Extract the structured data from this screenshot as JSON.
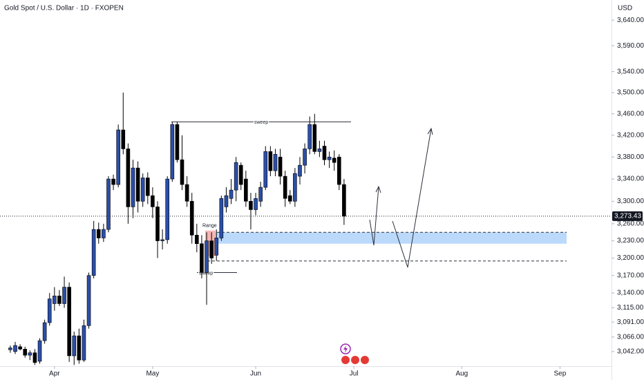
{
  "chart_data": {
    "type": "candlestick",
    "title": "Gold Spot / U.S. Dollar · 1D · FXOPEN",
    "currency": "USD",
    "log_scale": true,
    "grid": false,
    "up_color": "#2b4ea8",
    "down_color": "#000000",
    "ylim": [
      3018,
      3680
    ],
    "xlim": [
      -2.1,
      122.5
    ],
    "yticks": [
      {
        "value": 3640,
        "label": "3,640.00"
      },
      {
        "value": 3590,
        "label": "3,590.00"
      },
      {
        "value": 3540,
        "label": "3,540.00"
      },
      {
        "value": 3500,
        "label": "3,500.00"
      },
      {
        "value": 3460,
        "label": "3,460.00"
      },
      {
        "value": 3420,
        "label": "3,420.00"
      },
      {
        "value": 3380,
        "label": "3,380.00"
      },
      {
        "value": 3340,
        "label": "3,340.00"
      },
      {
        "value": 3300,
        "label": "3,300.00"
      },
      {
        "value": 3260,
        "label": "3,260.00"
      },
      {
        "value": 3230,
        "label": "3,230.00"
      },
      {
        "value": 3200,
        "label": "3,200.00"
      },
      {
        "value": 3170,
        "label": "3,170.00"
      },
      {
        "value": 3140,
        "label": "3,140.00"
      },
      {
        "value": 3115,
        "label": "3,115.00"
      },
      {
        "value": 3091,
        "label": "3,091.00"
      },
      {
        "value": 3066,
        "label": "3,066.00"
      },
      {
        "value": 3042,
        "label": "3,042.00"
      }
    ],
    "xticks": [
      {
        "value": 9,
        "label": "Apr"
      },
      {
        "value": 29,
        "label": "May"
      },
      {
        "value": 50,
        "label": "Jun"
      },
      {
        "value": 70,
        "label": "Jul"
      },
      {
        "value": 92,
        "label": "Aug"
      },
      {
        "value": 112,
        "label": "Sep"
      }
    ],
    "open": [
      3045,
      3042,
      3050,
      3046,
      3036,
      3040,
      3026,
      3060,
      3090,
      3122,
      3135,
      3122,
      3150,
      3035,
      3068,
      3028,
      3085,
      3170,
      3250,
      3235,
      3250,
      3340,
      3330,
      3430,
      3395,
      3290,
      3360,
      3300,
      3342,
      3310,
      3290,
      3230,
      3232,
      3340,
      3440,
      3375,
      3330,
      3300,
      3240,
      3225,
      3175,
      3230,
      3205,
      3235,
      3290,
      3305,
      3320,
      3365,
      3340,
      3300,
      3285,
      3300,
      3325,
      3390,
      3355,
      3380,
      3345,
      3310,
      3300,
      3345,
      3365,
      3395,
      3440,
      3390,
      3400,
      3375,
      3378,
      3380,
      3330
    ],
    "high": [
      3052,
      3058,
      3054,
      3050,
      3044,
      3046,
      3064,
      3095,
      3140,
      3150,
      3145,
      3168,
      3158,
      3075,
      3080,
      3095,
      3175,
      3265,
      3262,
      3260,
      3345,
      3348,
      3440,
      3500,
      3405,
      3375,
      3372,
      3350,
      3352,
      3325,
      3300,
      3250,
      3345,
      3445,
      3445,
      3420,
      3345,
      3315,
      3260,
      3240,
      3245,
      3245,
      3250,
      3310,
      3325,
      3340,
      3380,
      3370,
      3355,
      3315,
      3315,
      3335,
      3400,
      3400,
      3395,
      3395,
      3355,
      3320,
      3360,
      3380,
      3405,
      3455,
      3460,
      3410,
      3410,
      3390,
      3392,
      3385,
      3340
    ],
    "low": [
      3040,
      3038,
      3044,
      3032,
      3028,
      3020,
      3022,
      3055,
      3085,
      3110,
      3118,
      3115,
      3025,
      3020,
      3022,
      3025,
      3080,
      3165,
      3225,
      3228,
      3245,
      3320,
      3325,
      3385,
      3260,
      3270,
      3280,
      3290,
      3295,
      3270,
      3200,
      3215,
      3225,
      3335,
      3370,
      3320,
      3290,
      3225,
      3210,
      3165,
      3120,
      3190,
      3195,
      3230,
      3280,
      3295,
      3300,
      3320,
      3290,
      3250,
      3275,
      3290,
      3320,
      3345,
      3345,
      3330,
      3290,
      3295,
      3290,
      3330,
      3350,
      3385,
      3385,
      3380,
      3365,
      3360,
      3355,
      3320,
      3258
    ],
    "close": [
      3048,
      3052,
      3046,
      3036,
      3040,
      3024,
      3060,
      3090,
      3130,
      3135,
      3122,
      3150,
      3035,
      3068,
      3028,
      3085,
      3170,
      3250,
      3235,
      3250,
      3340,
      3330,
      3430,
      3395,
      3290,
      3360,
      3300,
      3342,
      3310,
      3290,
      3230,
      3232,
      3340,
      3440,
      3375,
      3330,
      3300,
      3240,
      3225,
      3175,
      3230,
      3200,
      3235,
      3305,
      3310,
      3320,
      3370,
      3330,
      3300,
      3285,
      3305,
      3325,
      3390,
      3355,
      3385,
      3345,
      3305,
      3300,
      3350,
      3365,
      3395,
      3440,
      3390,
      3395,
      3375,
      3380,
      3370,
      3330,
      3273.43
    ],
    "last_price": {
      "value": 3273.43,
      "label": "3,273.43"
    },
    "levels": [
      {
        "name": "sweep",
        "value": 3445
      },
      {
        "name": "sweep",
        "value": 3175
      }
    ],
    "range_box": {
      "label": "Range",
      "top": 3248,
      "bottom": 3203
    },
    "zone": [
      3245,
      3225
    ],
    "dashed_levels": [
      3245,
      3195
    ]
  }
}
